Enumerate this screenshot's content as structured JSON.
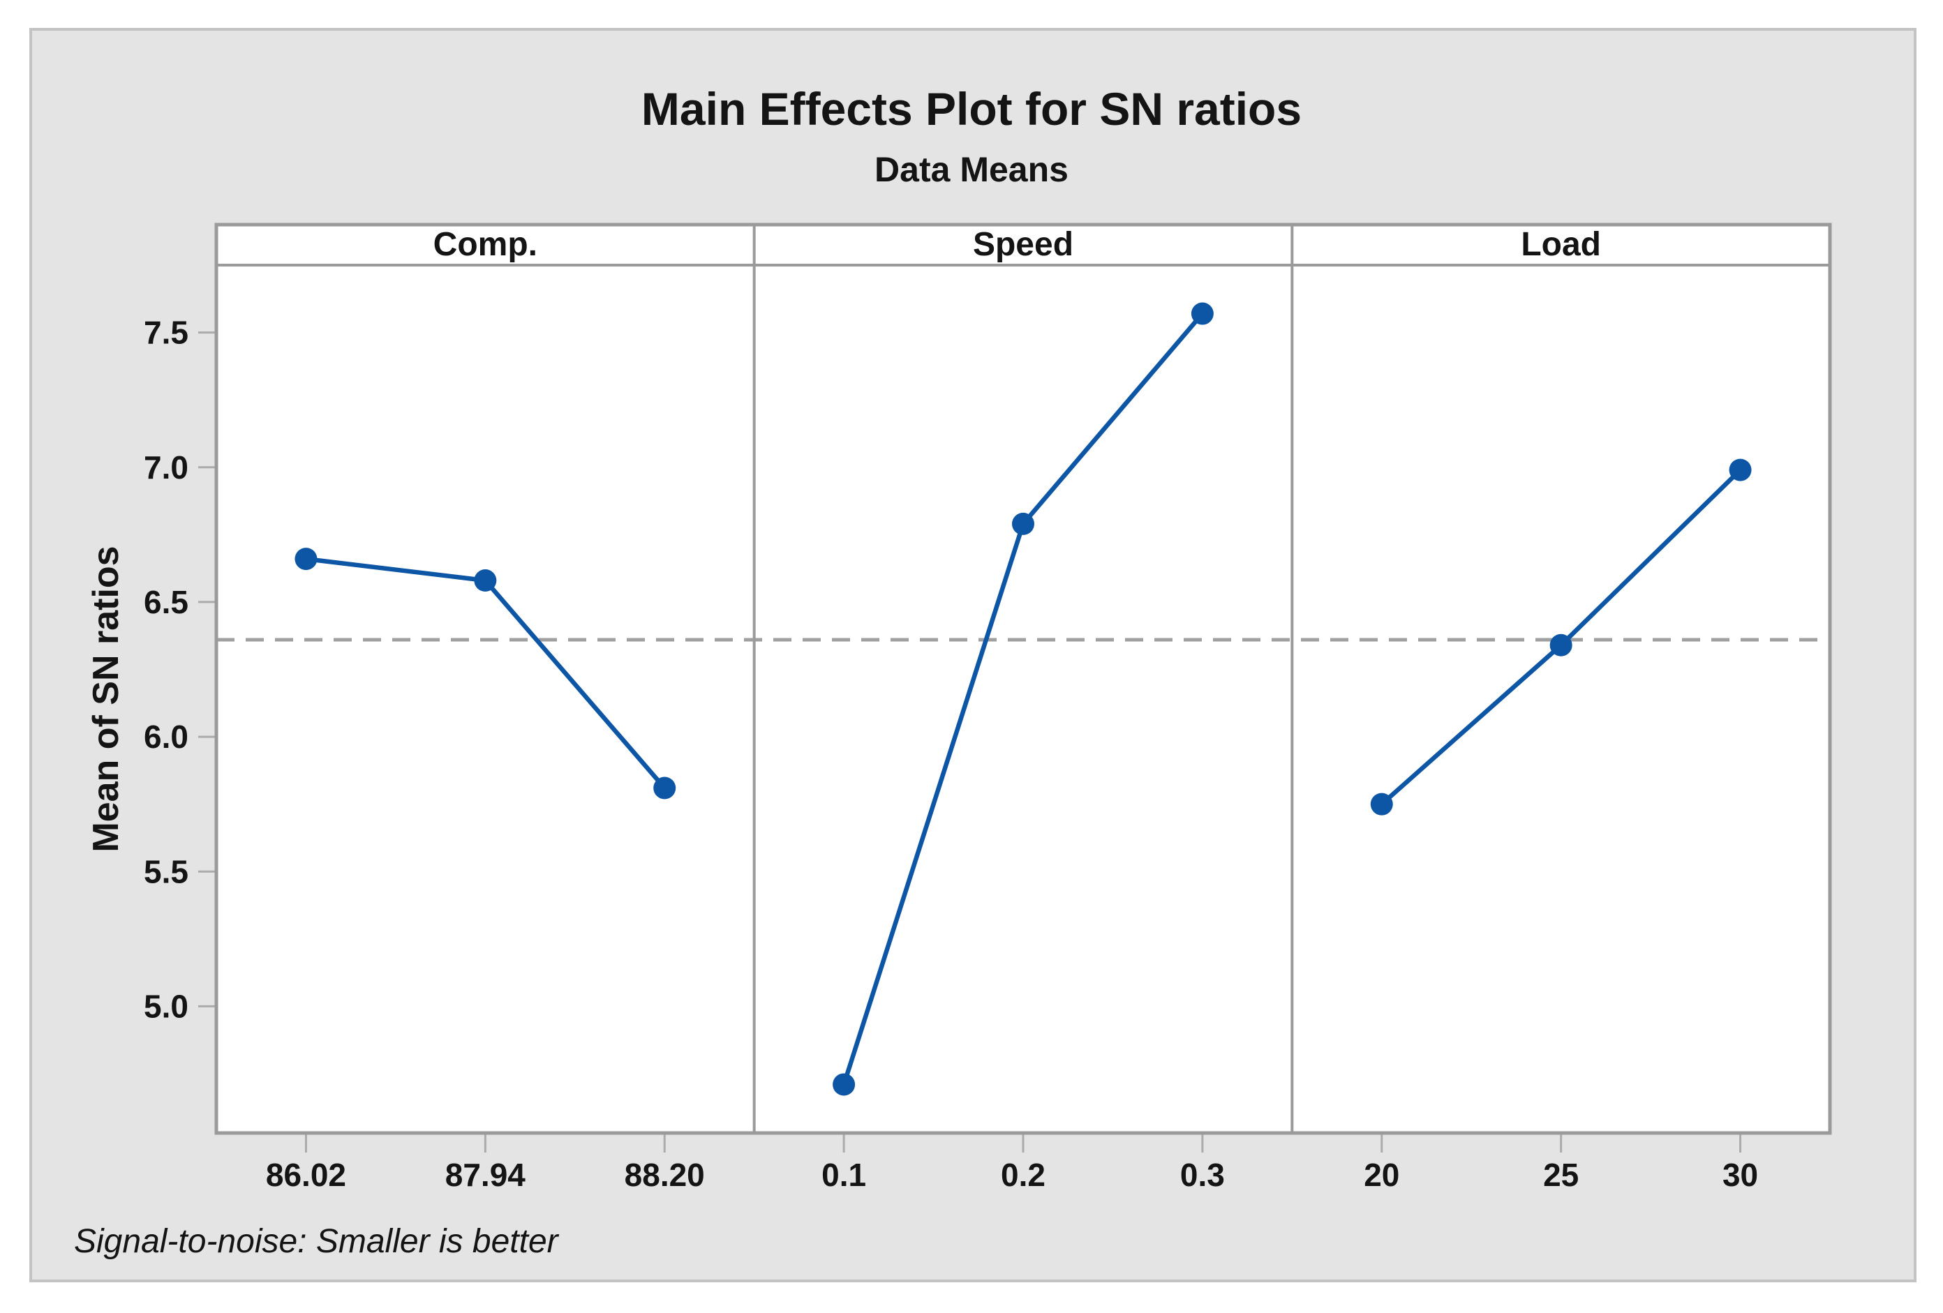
{
  "title": "Main Effects Plot for SN ratios",
  "subtitle": "Data Means",
  "y_axis_title": "Mean of SN ratios",
  "footnote": "Signal-to-noise: Smaller is better",
  "colors": {
    "series_blue": "#0d55a5",
    "grand_mean_dash": "#a0a0a0",
    "panel_border": "#9a9a9a",
    "tick": "#ababab",
    "canvas_gray": "#e4e4e4",
    "panel_background": "#ffffff",
    "text": "#141414"
  },
  "chart_data": {
    "type": "line",
    "title": "Main Effects Plot for SN ratios",
    "subtitle": "Data Means",
    "ylabel": "Mean of SN ratios",
    "footnote": "Signal-to-noise: Smaller is better",
    "grid": false,
    "legend": false,
    "ylim": [
      4.53,
      7.75
    ],
    "yticks": [
      7.5,
      7.0,
      6.5,
      6.0,
      5.5,
      5.0
    ],
    "ytick_labels": [
      "7.5",
      "7.0",
      "6.5",
      "6.0",
      "5.5",
      "5.0"
    ],
    "grand_mean": 6.36,
    "grand_mean_style": "dashed",
    "panels": [
      {
        "label": "Comp.",
        "categories": [
          "86.02",
          "87.94",
          "88.20"
        ],
        "values": [
          6.66,
          6.58,
          5.81
        ]
      },
      {
        "label": "Speed",
        "categories": [
          "0.1",
          "0.2",
          "0.3"
        ],
        "values": [
          4.71,
          6.79,
          7.57
        ]
      },
      {
        "label": "Load",
        "categories": [
          "20",
          "25",
          "30"
        ],
        "values": [
          5.75,
          6.34,
          6.99
        ]
      }
    ]
  }
}
